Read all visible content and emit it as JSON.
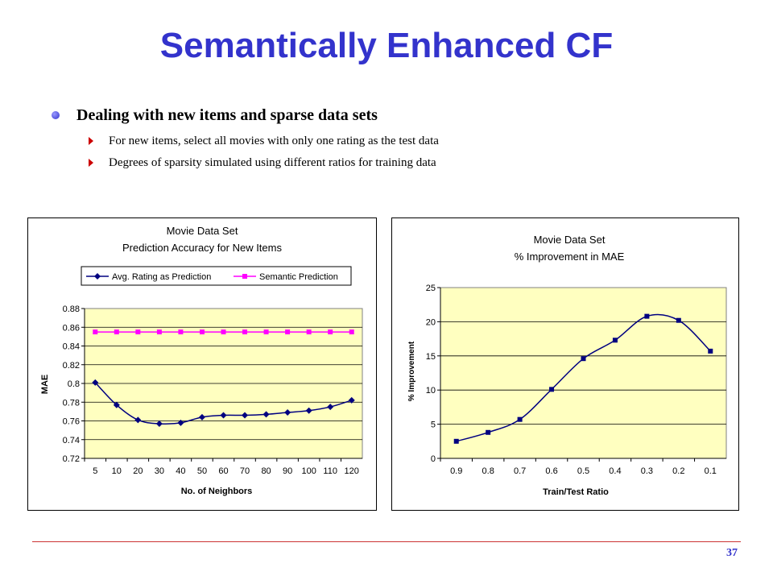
{
  "slide": {
    "title": "Semantically Enhanced CF",
    "bullet": "Dealing with new items and sparse data sets",
    "sub_bullets": [
      "For new items, select all movies with only one rating as the test data",
      "Degrees of sparsity simulated using different ratios for training data"
    ],
    "page_number": "37",
    "colors": {
      "title": "#3333cc",
      "plot_bg": "#ffffc0",
      "series_blue": "#000080",
      "series_pink": "#ff00ff"
    }
  },
  "chart_data": [
    {
      "type": "line",
      "title": [
        "Movie Data Set",
        "Prediction Accuracy for New Items"
      ],
      "xlabel": "No. of Neighbors",
      "ylabel": "MAE",
      "categories": [
        "5",
        "10",
        "20",
        "30",
        "40",
        "50",
        "60",
        "70",
        "80",
        "90",
        "100",
        "110",
        "120"
      ],
      "yticks": [
        "0.72",
        "0.74",
        "0.76",
        "0.78",
        "0.8",
        "0.82",
        "0.84",
        "0.86",
        "0.88"
      ],
      "ylim": [
        0.72,
        0.88
      ],
      "grid": true,
      "legend": "top",
      "series": [
        {
          "name": "Avg. Rating as Prediction",
          "marker": "diamond",
          "color": "#000080",
          "values": [
            0.801,
            0.777,
            0.761,
            0.757,
            0.758,
            0.764,
            0.766,
            0.766,
            0.767,
            0.769,
            0.771,
            0.775,
            0.782
          ]
        },
        {
          "name": "Semantic Prediction",
          "marker": "square",
          "color": "#ff00ff",
          "values": [
            0.855,
            0.855,
            0.855,
            0.855,
            0.855,
            0.855,
            0.855,
            0.855,
            0.855,
            0.855,
            0.855,
            0.855,
            0.855
          ]
        }
      ]
    },
    {
      "type": "line",
      "title": [
        "Movie Data Set",
        "% Improvement in MAE"
      ],
      "xlabel": "Train/Test Ratio",
      "ylabel": "% Improvement",
      "categories": [
        "0.9",
        "0.8",
        "0.7",
        "0.6",
        "0.5",
        "0.4",
        "0.3",
        "0.2",
        "0.1"
      ],
      "yticks": [
        "0",
        "5",
        "10",
        "15",
        "20",
        "25"
      ],
      "ylim": [
        0,
        25
      ],
      "grid": true,
      "legend": "none",
      "series": [
        {
          "marker": "square",
          "color": "#000080",
          "values": [
            2.5,
            3.8,
            5.7,
            10.1,
            14.6,
            17.3,
            20.8,
            20.2,
            15.7
          ]
        }
      ]
    }
  ]
}
